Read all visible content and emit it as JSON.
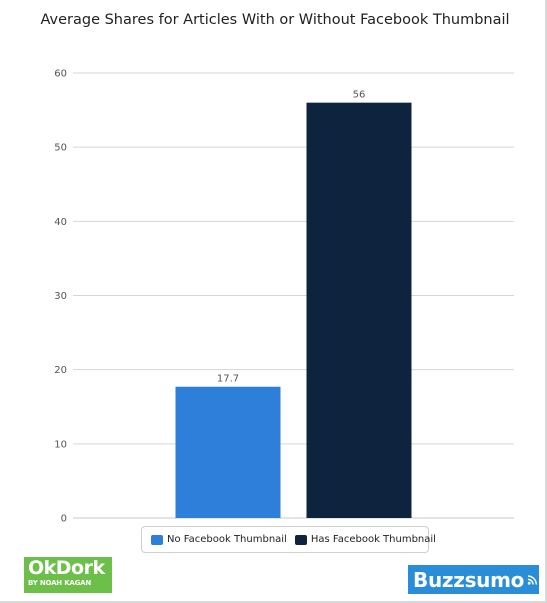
{
  "chart_data": {
    "type": "bar",
    "title": "Average Shares for Articles With or Without Facebook Thumbnail",
    "categories": [
      "No Facebook Thumbnail",
      "Has Facebook Thumbnail"
    ],
    "values": [
      17.7,
      56
    ],
    "value_labels": [
      "17.7",
      "56"
    ],
    "colors": [
      "#2e7fda",
      "#0e233d"
    ],
    "ylim": [
      0,
      60
    ],
    "yticks": [
      0,
      10,
      20,
      30,
      40,
      50,
      60
    ],
    "xlabel": "",
    "ylabel": "",
    "grid": true,
    "legend": {
      "placement": "bottom-center",
      "entries": [
        "No Facebook Thumbnail",
        "Has Facebook Thumbnail"
      ]
    }
  },
  "logos": {
    "left": {
      "main": "OkDork",
      "sub": "BY NOAH KAGAN",
      "color": "#6cc04a"
    },
    "right": {
      "main": "Buzzsumo",
      "icon": "broadcast-icon",
      "color": "#2a8dd8"
    }
  }
}
